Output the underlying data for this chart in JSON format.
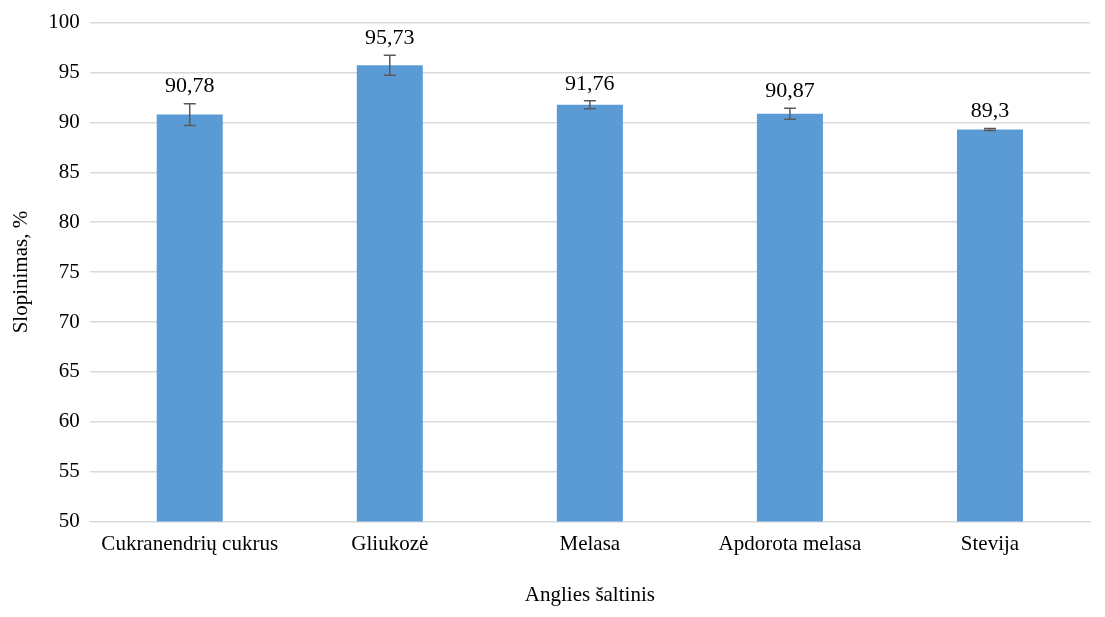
{
  "chart_data": {
    "type": "bar",
    "xlabel": "Anglies šaltinis",
    "ylabel": "Slopinimas, %",
    "categories": [
      "Cukranendrių cukrus",
      "Gliukozė",
      "Melasa",
      "Apdorota melasa",
      "Stevija"
    ],
    "values": [
      90.78,
      95.73,
      91.76,
      90.87,
      89.3
    ],
    "errors": [
      1.1,
      1.0,
      0.4,
      0.55,
      0.1
    ],
    "value_labels": [
      "90,78",
      "95,73",
      "91,76",
      "90,87",
      "89,3"
    ],
    "color": "#5b9bd5",
    "ylim": [
      50,
      100
    ],
    "yticks": [
      50,
      55,
      60,
      65,
      70,
      75,
      80,
      85,
      90,
      95,
      100
    ],
    "grid": "y",
    "legend": false
  }
}
